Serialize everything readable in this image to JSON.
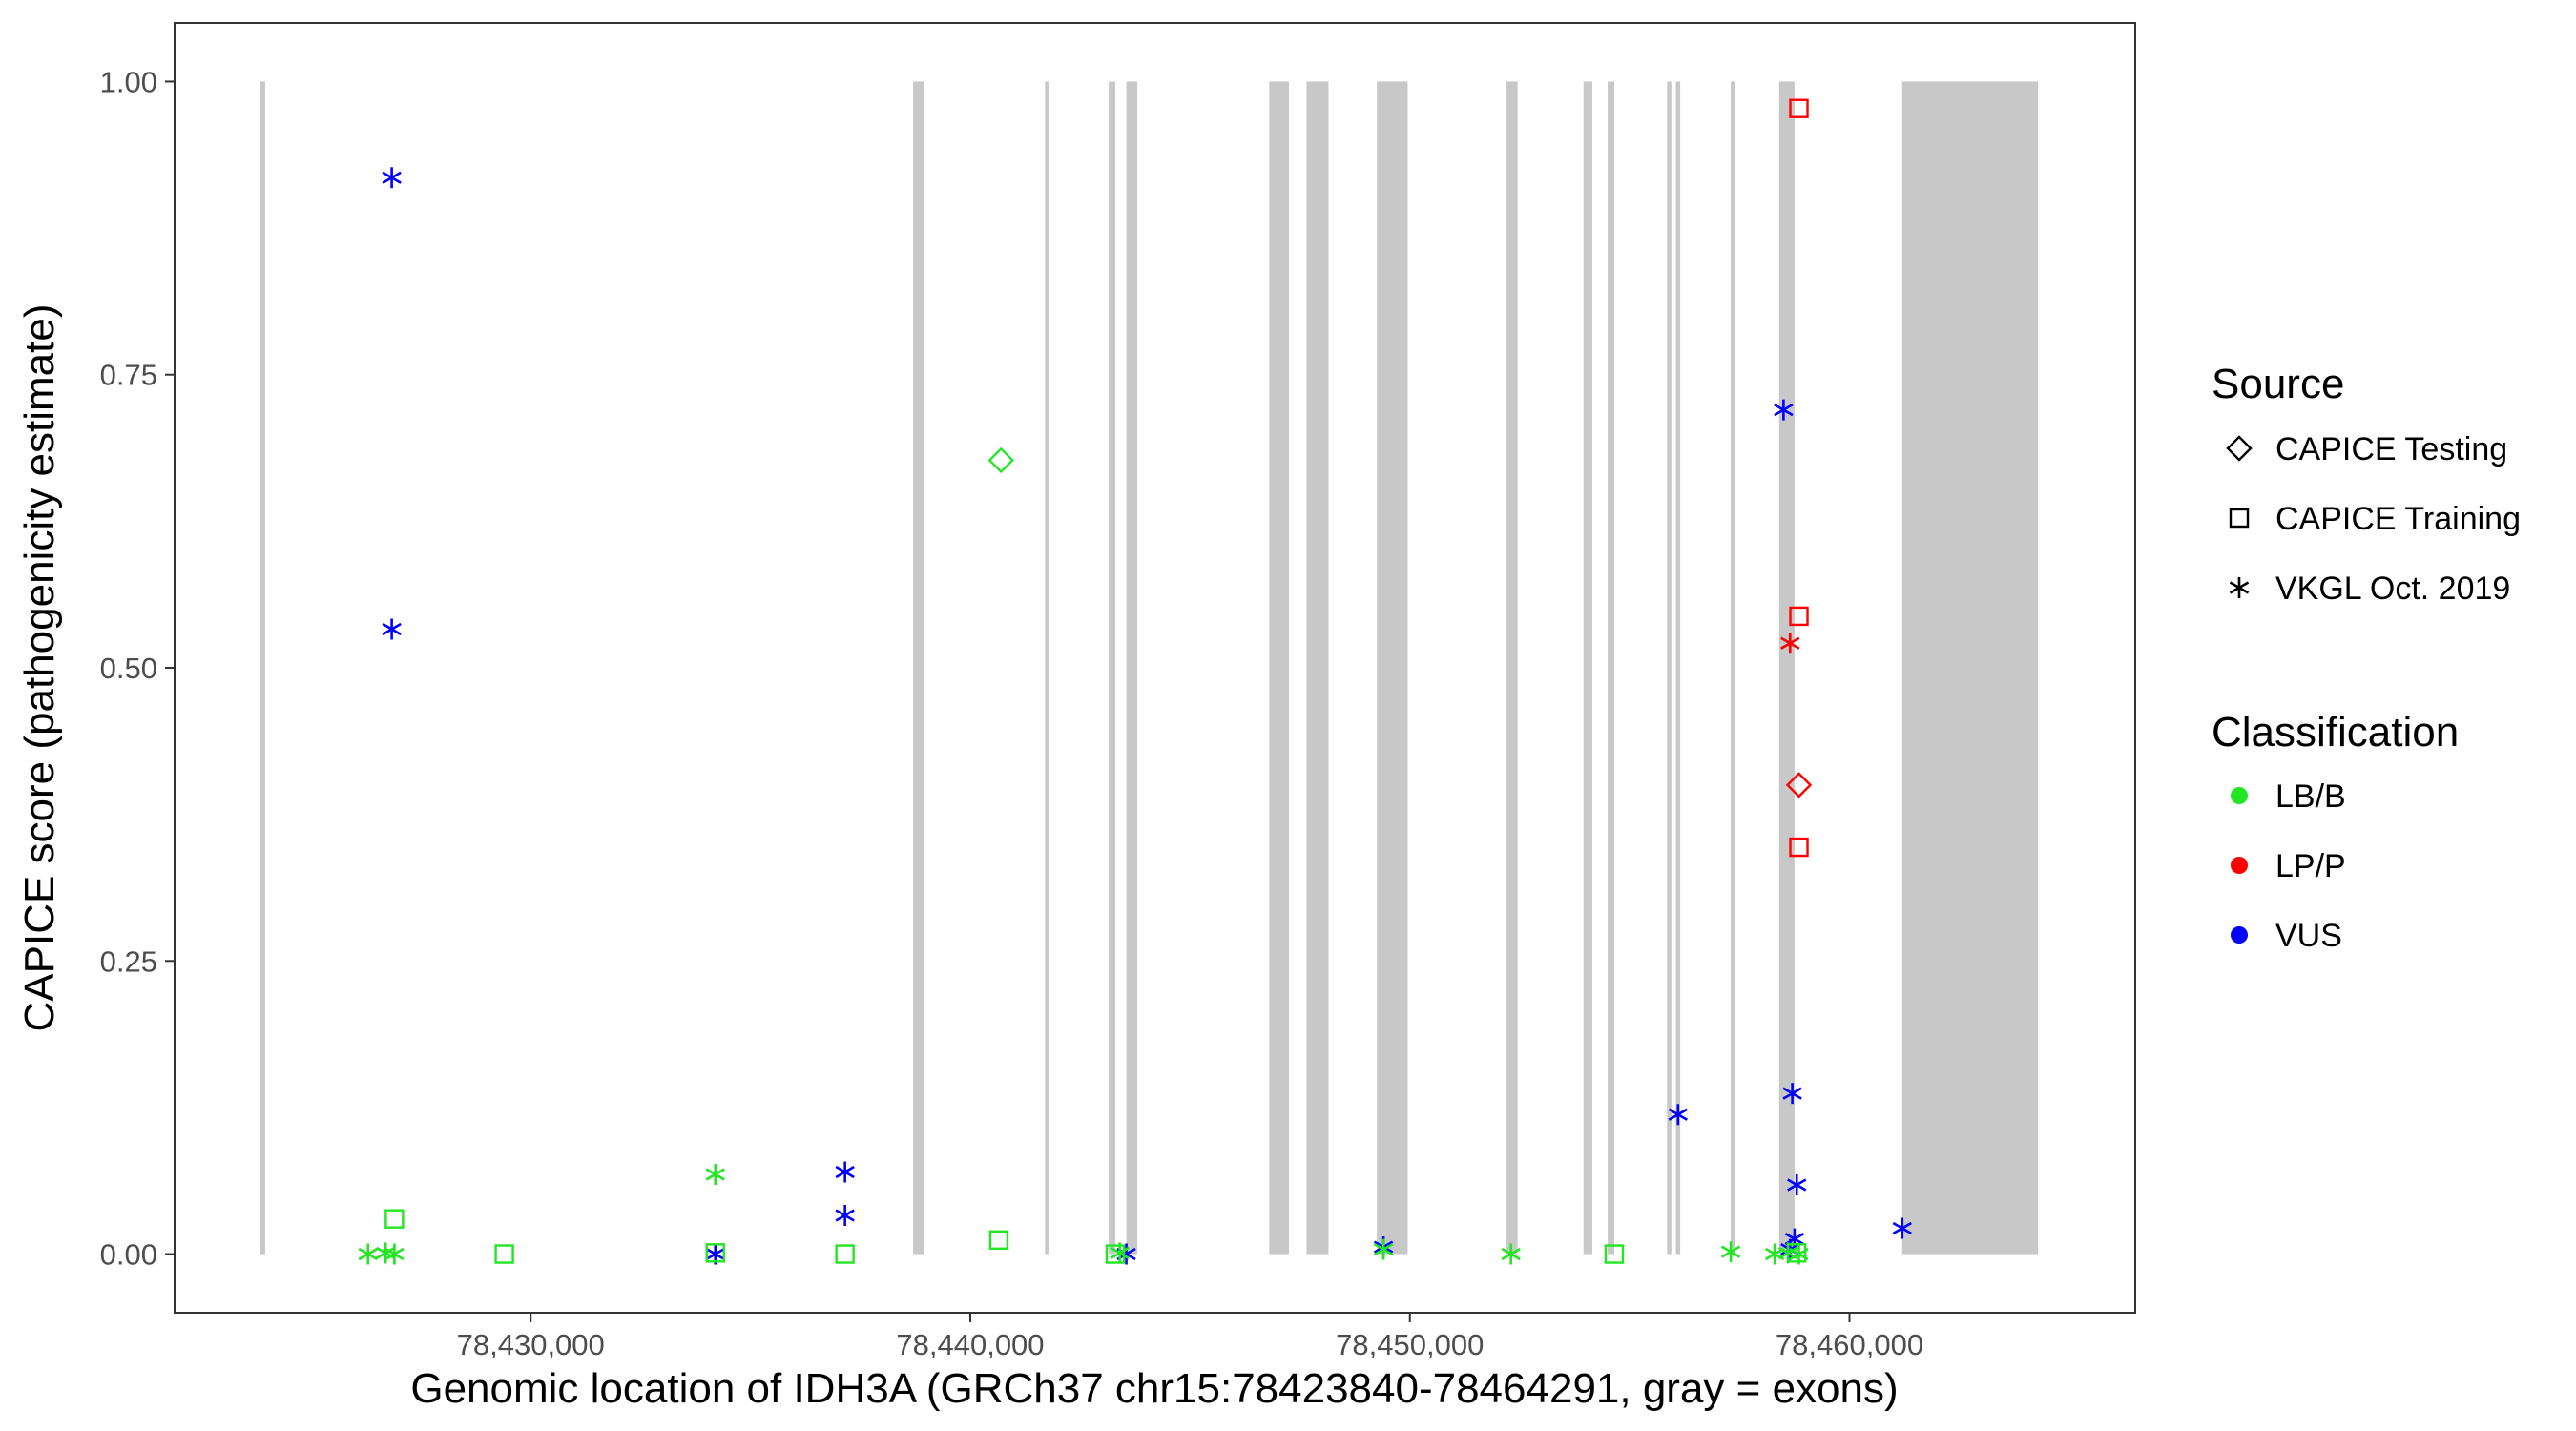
{
  "chart_data": {
    "type": "scatter",
    "xlabel": "Genomic location of IDH3A (GRCh37 chr15:78423840-78464291, gray = exons)",
    "ylabel": "CAPICE score (pathogenicity estimate)",
    "xlim": [
      78421900,
      78466500
    ],
    "ylim": [
      -0.05,
      1.05
    ],
    "x_ticks": [
      78430000,
      78440000,
      78450000,
      78460000
    ],
    "x_tick_labels": [
      "78,430,000",
      "78,440,000",
      "78,450,000",
      "78,460,000"
    ],
    "y_ticks": [
      0,
      0.25,
      0.5,
      0.75,
      1
    ],
    "y_tick_labels": [
      "0.00",
      "0.25",
      "0.50",
      "0.75",
      "1.00"
    ],
    "grid": false,
    "exons": [
      [
        78423840,
        78423960
      ],
      [
        78438700,
        78438950
      ],
      [
        78441700,
        78441800
      ],
      [
        78443150,
        78443300
      ],
      [
        78443550,
        78443800
      ],
      [
        78446800,
        78447250
      ],
      [
        78447650,
        78448150
      ],
      [
        78449250,
        78449950
      ],
      [
        78452200,
        78452450
      ],
      [
        78453950,
        78454150
      ],
      [
        78454500,
        78454650
      ],
      [
        78455850,
        78455950
      ],
      [
        78456050,
        78456150
      ],
      [
        78457300,
        78457400
      ],
      [
        78458400,
        78458750
      ],
      [
        78461200,
        78464291
      ]
    ],
    "exon_color": "#c8c8c8",
    "legend": {
      "placement": "right",
      "source_title": "Source",
      "source_entries": [
        {
          "label": "CAPICE Testing",
          "shape": "diamond"
        },
        {
          "label": "CAPICE Training",
          "shape": "square"
        },
        {
          "label": "VKGL Oct. 2019",
          "shape": "asterisk"
        }
      ],
      "class_title": "Classification",
      "class_entries": [
        {
          "label": "LB/B",
          "color": "#22e622"
        },
        {
          "label": "LP/P",
          "color": "#ff0000"
        },
        {
          "label": "VUS",
          "color": "#0000ff"
        }
      ]
    },
    "series": [
      {
        "shape": "asterisk",
        "class": "VUS",
        "points": [
          [
            78426840,
            0.918
          ],
          [
            78426840,
            0.533
          ],
          [
            78434200,
            0.0
          ],
          [
            78437150,
            0.07
          ],
          [
            78437150,
            0.033
          ],
          [
            78443550,
            0.0
          ],
          [
            78449400,
            0.006
          ],
          [
            78456100,
            0.119
          ],
          [
            78458500,
            0.72
          ],
          [
            78458700,
            0.137
          ],
          [
            78458800,
            0.059
          ],
          [
            78458750,
            0.013
          ],
          [
            78458650,
            0.004
          ],
          [
            78461200,
            0.022
          ]
        ]
      },
      {
        "shape": "asterisk",
        "class": "LB/B",
        "points": [
          [
            78426300,
            0.0
          ],
          [
            78426700,
            0.001
          ],
          [
            78426900,
            0.0
          ],
          [
            78434200,
            0.068
          ],
          [
            78443400,
            0.001
          ],
          [
            78449400,
            0.004
          ],
          [
            78452300,
            0.0
          ],
          [
            78457300,
            0.002
          ],
          [
            78458300,
            0.0
          ],
          [
            78458600,
            0.001
          ],
          [
            78458850,
            0.0
          ]
        ]
      },
      {
        "shape": "asterisk",
        "class": "LP/P",
        "points": [
          [
            78458650,
            0.521
          ]
        ]
      },
      {
        "shape": "square",
        "class": "LB/B",
        "points": [
          [
            78426900,
            0.03
          ],
          [
            78429400,
            0.0
          ],
          [
            78434200,
            0.001
          ],
          [
            78437150,
            0.0
          ],
          [
            78440650,
            0.012
          ],
          [
            78443300,
            0.0
          ],
          [
            78454650,
            0.0
          ],
          [
            78458800,
            0.001
          ]
        ]
      },
      {
        "shape": "square",
        "class": "LP/P",
        "points": [
          [
            78458850,
            0.977
          ],
          [
            78458850,
            0.544
          ],
          [
            78458850,
            0.347
          ]
        ]
      },
      {
        "shape": "diamond",
        "class": "LB/B",
        "points": [
          [
            78440700,
            0.677
          ]
        ]
      },
      {
        "shape": "diamond",
        "class": "LP/P",
        "points": [
          [
            78458850,
            0.4
          ]
        ]
      }
    ]
  }
}
